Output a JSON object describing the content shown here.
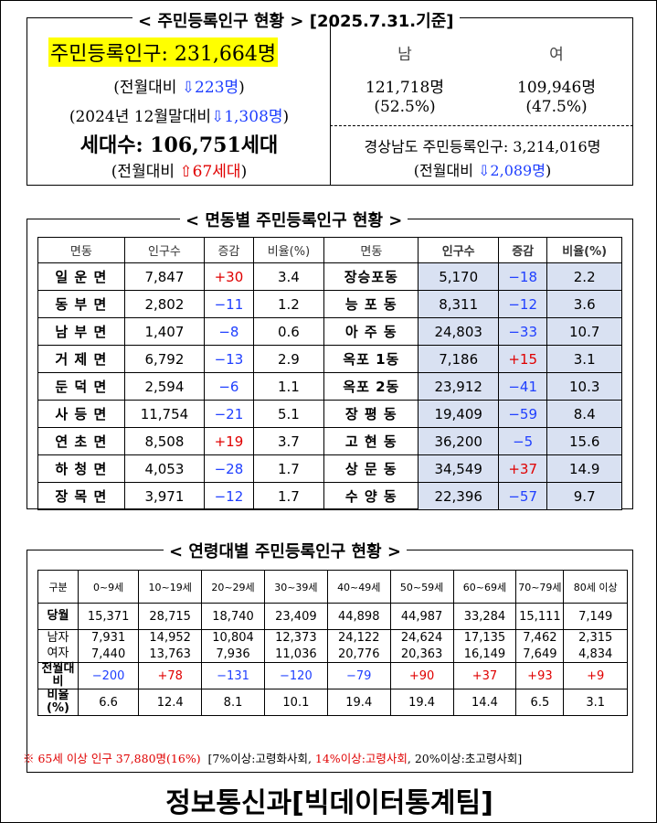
{
  "header": {
    "title": "< 주민등록인구 현황 >",
    "date": "[2025.7.31.기준]"
  },
  "summary": {
    "total": "주민등록인구: 231,664명",
    "month_change": {
      "label": "(전월대비",
      "value": "⇩223명",
      "close": ")"
    },
    "year_change": {
      "label": "(2024년 12월말대비",
      "value": "⇩1,308명",
      "close": ")"
    },
    "households": "세대수: 106,751세대",
    "household_change": {
      "label": "(전월대비",
      "value": "⇧67세대",
      "close": ")"
    },
    "male": {
      "label": "남",
      "count": "121,718명",
      "share": "(52.5%)"
    },
    "female": {
      "label": "여",
      "count": "109,946명",
      "share": "(47.5%)"
    },
    "province": "경상남도 주민등록인구: 3,214,016명",
    "province_change": {
      "label": "(전월대비",
      "value": "⇩2,089명",
      "close": ")"
    }
  },
  "district_table": {
    "title": "< 면동별 주민등록인구 현황 >",
    "header": [
      "면동",
      "인구수",
      "증감",
      "비율(%)",
      "면동",
      "인구수",
      "증감",
      "비율(%)"
    ],
    "rows": [
      [
        "일 운 면",
        "7,847",
        "+30",
        "3.4",
        "장승포동",
        "5,170",
        "−18",
        "2.2"
      ],
      [
        "동 부 면",
        "2,802",
        "−11",
        "1.2",
        "능 포 동",
        "8,311",
        "−12",
        "3.6"
      ],
      [
        "남 부 면",
        "1,407",
        "−8",
        "0.6",
        "아 주 동",
        "24,803",
        "−33",
        "10.7"
      ],
      [
        "거 제 면",
        "6,792",
        "−13",
        "2.9",
        "옥포 1동",
        "7,186",
        "+15",
        "3.1"
      ],
      [
        "둔 덕 면",
        "2,594",
        "−6",
        "1.1",
        "옥포 2동",
        "23,912",
        "−41",
        "10.3"
      ],
      [
        "사 등 면",
        "11,754",
        "−21",
        "5.1",
        "장 평 동",
        "19,409",
        "−59",
        "8.4"
      ],
      [
        "연 초 면",
        "8,508",
        "+19",
        "3.7",
        "고 현 동",
        "36,200",
        "−5",
        "15.6"
      ],
      [
        "하 청 면",
        "4,053",
        "−28",
        "1.7",
        "상 문 동",
        "34,549",
        "+37",
        "14.9"
      ],
      [
        "장 목 면",
        "3,971",
        "−12",
        "1.7",
        "수 양 동",
        "22,396",
        "−57",
        "9.7"
      ]
    ]
  },
  "age_table": {
    "title": "< 연령대별 주민등록인구 현황 >",
    "header": [
      "구분",
      "0~9세",
      "10~19세",
      "20~29세",
      "30~39세",
      "40~49세",
      "50~59세",
      "60~69세",
      "70~79세",
      "80세 이상"
    ],
    "rows": [
      [
        "당월",
        "15,371",
        "28,715",
        "18,740",
        "23,409",
        "44,898",
        "44,987",
        "33,284",
        "15,111",
        "7,149"
      ],
      [
        "남자",
        "7,931",
        "14,952",
        "10,804",
        "12,373",
        "24,122",
        "24,624",
        "17,135",
        "7,462",
        "2,315"
      ],
      [
        "여자",
        "7,440",
        "13,763",
        "7,936",
        "11,036",
        "20,776",
        "20,363",
        "16,149",
        "7,649",
        "4,834"
      ],
      [
        "전월대비",
        "−200",
        "+78",
        "−131",
        "−120",
        "−79",
        "+90",
        "+37",
        "+93",
        "+9"
      ],
      [
        "비율(%)",
        "6.6",
        "12.4",
        "8.1",
        "10.1",
        "19.4",
        "19.4",
        "14.4",
        "6.5",
        "3.1"
      ]
    ]
  },
  "note": [
    "※ 65세 이상 인구 37,880명(16%)",
    "[7%이상:고령화사회, ",
    "14%이상:고령사회",
    ", 20%이상:초고령사회]"
  ],
  "footer": "정보통신과[빅데이터통계팀]"
}
